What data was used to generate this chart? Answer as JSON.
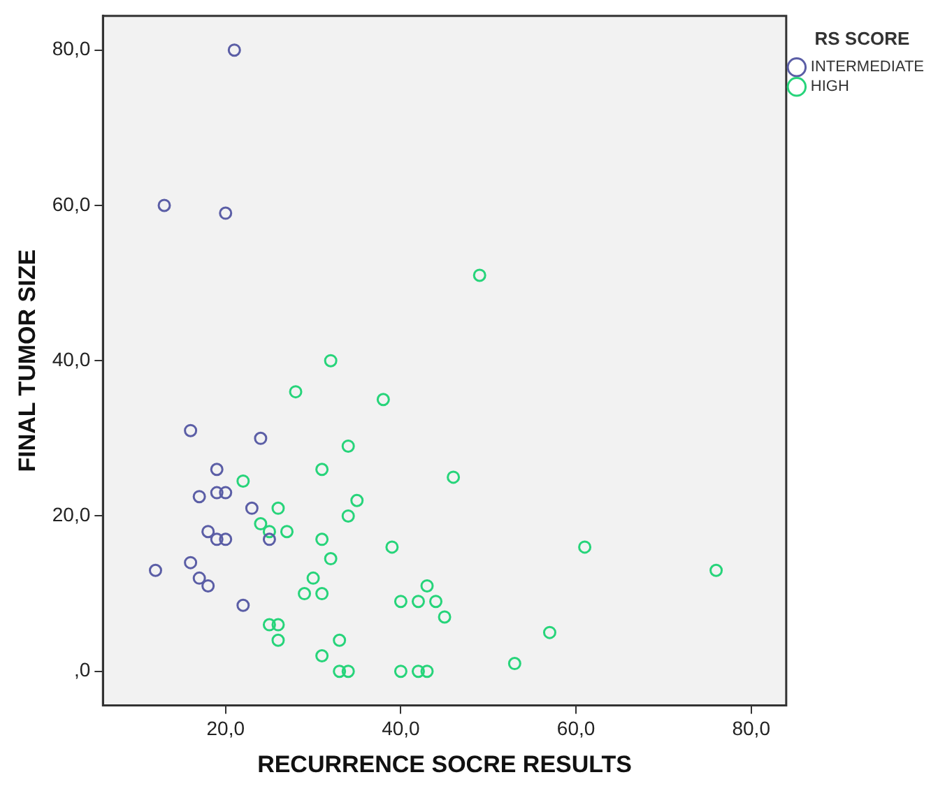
{
  "chart_data": {
    "type": "scatter",
    "xlabel": "RECURRENCE SOCRE RESULTS",
    "ylabel": "FINAL TUMOR SIZE",
    "legend_title": "RS SCORE",
    "legend": "top right",
    "marker": "circle",
    "grid": false,
    "xlim": [
      6,
      84
    ],
    "xticks": [
      {
        "value": 20,
        "label": "20,0"
      },
      {
        "value": 40,
        "label": "40,0"
      },
      {
        "value": 60,
        "label": "60,0"
      },
      {
        "value": 80,
        "label": "80,0"
      }
    ],
    "ylim": [
      -4.4,
      84.4
    ],
    "yticks": [
      {
        "value": 0,
        "label": ",0"
      },
      {
        "value": 20,
        "label": "20,0"
      },
      {
        "value": 40,
        "label": "40,0"
      },
      {
        "value": 60,
        "label": "60,0"
      },
      {
        "value": 80,
        "label": "80,0"
      }
    ],
    "series": [
      {
        "name": "INTERMEDIATE",
        "color": "#5b5ea6",
        "x": [
          21,
          13,
          20,
          16,
          24,
          19,
          17,
          19,
          20,
          23,
          18,
          19,
          20,
          25,
          16,
          12,
          17,
          18,
          22
        ],
        "values": [
          80,
          60,
          59,
          31,
          30,
          26,
          22.5,
          23,
          23,
          21,
          18,
          17,
          17,
          17,
          14,
          13,
          12,
          11,
          8.5
        ]
      },
      {
        "name": "HIGH",
        "color": "#27d47a",
        "x": [
          32,
          49,
          28,
          38,
          34,
          31,
          22,
          35,
          26,
          34,
          24,
          25,
          27,
          31,
          32,
          39,
          46,
          30,
          29,
          31,
          25,
          26,
          26,
          33,
          31,
          33,
          34,
          40,
          42,
          43,
          44,
          45,
          40,
          42,
          43,
          61,
          76,
          57,
          53
        ],
        "values": [
          40,
          51,
          36,
          35,
          29,
          26,
          24.5,
          22,
          21,
          20,
          19,
          18,
          18,
          17,
          14.5,
          16,
          25,
          12,
          10,
          10,
          6,
          6,
          4,
          4,
          2,
          0,
          0,
          9,
          9,
          11,
          9,
          7,
          0,
          0,
          0,
          16,
          13,
          5,
          1
        ]
      }
    ]
  }
}
